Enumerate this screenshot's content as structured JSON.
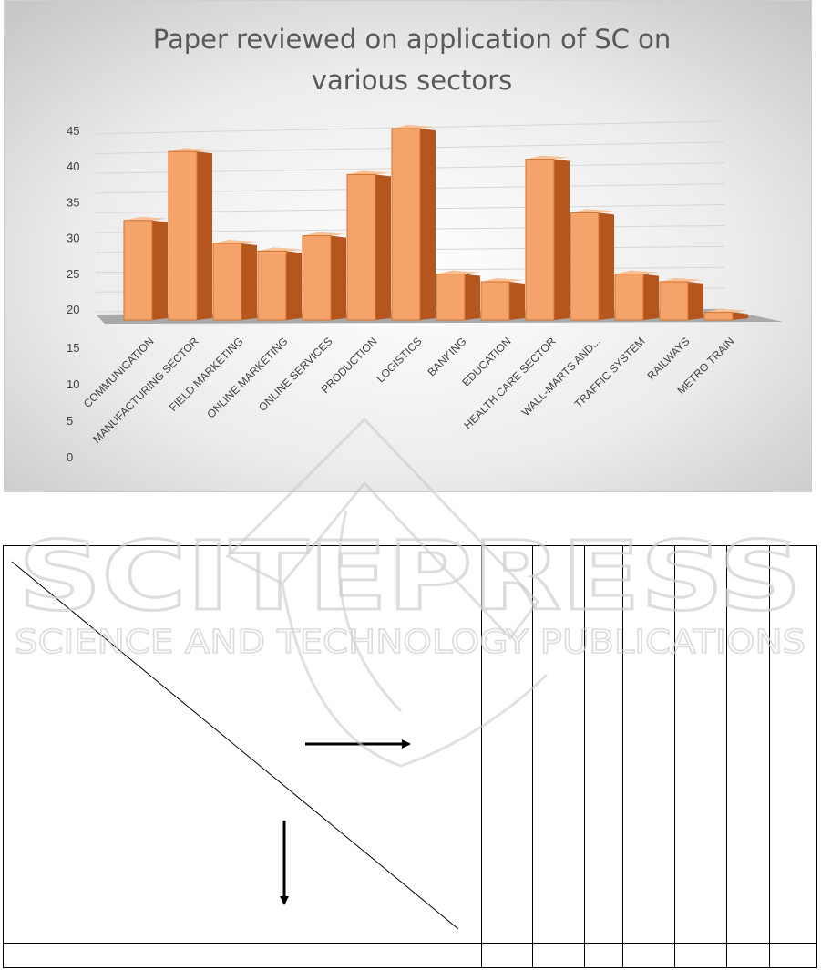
{
  "chart_data": {
    "type": "bar",
    "title_lines": [
      "Paper reviewed on application  of SC on",
      "various sectors"
    ],
    "categories": [
      "COMMUNICATION",
      "MANUFACTURING SECTOR",
      "FIELD MARKETING",
      "ONLINE MARKETING",
      "ONLINE SERVICES",
      "PRODUCTION",
      "LOGISTICS",
      "BANKING",
      "EDUCATION",
      "HEALTH CARE SECTOR",
      "WALL-MARTS AND...",
      "TRAFFIC SYSTEM",
      "RAILWAYS",
      "METRO TRAIN"
    ],
    "values": [
      33,
      42,
      30,
      29,
      31,
      39,
      45,
      26,
      25,
      41,
      34,
      26,
      25,
      21
    ],
    "y_ticks": [
      "0",
      "5",
      "10",
      "15",
      "20",
      "25",
      "30",
      "35",
      "40",
      "45"
    ],
    "ylim": [
      0,
      45
    ],
    "grid": true,
    "bar_color": "#f4a46a",
    "bar_side_color": "#b4561e",
    "bar_top_color": "#f8c197"
  },
  "watermark": {
    "brand": "SCITEPRESS",
    "tagline": "SCIENCE AND TECHNOLOGY PUBLICATIONS"
  }
}
